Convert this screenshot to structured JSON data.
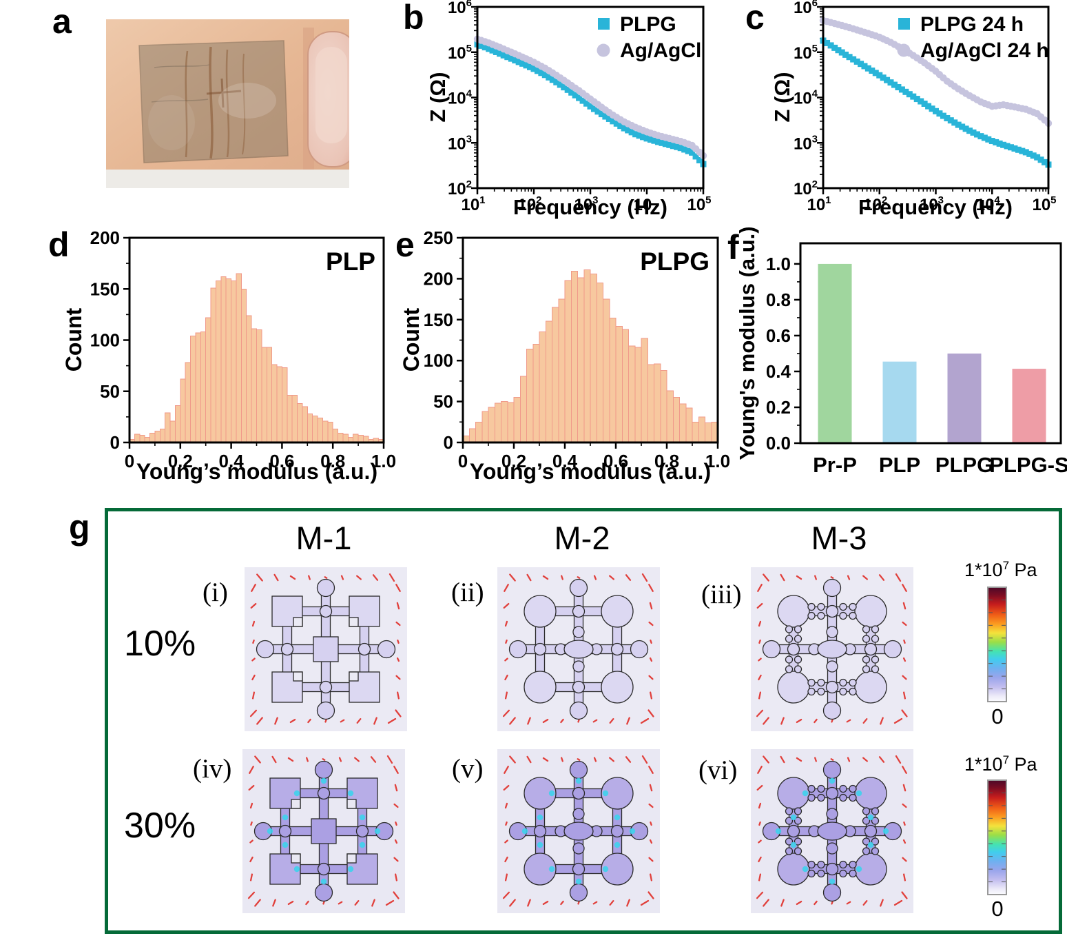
{
  "panels": {
    "a": {
      "label": "a"
    },
    "b": {
      "label": "b"
    },
    "c": {
      "label": "c"
    },
    "d": {
      "label": "d"
    },
    "e": {
      "label": "e"
    },
    "f": {
      "label": "f"
    },
    "g": {
      "label": "g"
    }
  },
  "chart_data": [
    {
      "id": "b",
      "type": "scatter",
      "xscale": "log",
      "yscale": "log",
      "xlabel": "Frequency (Hz)",
      "ylabel": "Z (Ω)",
      "xlim": [
        10,
        100000
      ],
      "ylim": [
        100,
        1000000
      ],
      "x_ticks": [
        {
          "b": "10",
          "e": "1"
        },
        {
          "b": "10",
          "e": "2"
        },
        {
          "b": "10",
          "e": "3"
        },
        {
          "b": "10",
          "e": ""
        },
        {
          "b": "10",
          "e": "5"
        }
      ],
      "y_ticks": [
        {
          "b": "10",
          "e": "2"
        },
        {
          "b": "10",
          "e": "3"
        },
        {
          "b": "10",
          "e": "4"
        },
        {
          "b": "10",
          "e": "5"
        },
        {
          "b": "10",
          "e": "6"
        }
      ],
      "legend_position": "top-right",
      "series": [
        {
          "name": "PLPG",
          "marker": "square",
          "color": "#29b4d8",
          "x": [
            10,
            16,
            25,
            40,
            63,
            100,
            158,
            251,
            398,
            631,
            1000,
            1585,
            2512,
            3981,
            6310,
            10000,
            15849,
            25119,
            39811,
            63096,
            100000
          ],
          "y": [
            150000,
            119000,
            93000,
            72000,
            56000,
            43000,
            31500,
            21800,
            14800,
            9800,
            6400,
            4300,
            3000,
            2100,
            1550,
            1250,
            1050,
            900,
            770,
            610,
            340
          ]
        },
        {
          "name": "Ag/AgCl",
          "marker": "circle",
          "color": "#c6c4de",
          "x": [
            10,
            16,
            25,
            40,
            63,
            100,
            158,
            251,
            398,
            631,
            1000,
            1585,
            2512,
            3981,
            6310,
            10000,
            15849,
            25119,
            39811,
            63096,
            100000
          ],
          "y": [
            195000,
            160000,
            128000,
            100000,
            78000,
            60000,
            44500,
            31000,
            21000,
            14200,
            9300,
            6100,
            4100,
            2900,
            2200,
            1750,
            1450,
            1250,
            1080,
            880,
            520
          ]
        }
      ]
    },
    {
      "id": "c",
      "type": "scatter",
      "xscale": "log",
      "yscale": "log",
      "xlabel": "Frequency (Hz)",
      "ylabel": "Z (Ω)",
      "xlim": [
        10,
        100000
      ],
      "ylim": [
        100,
        1000000
      ],
      "x_ticks": [
        {
          "b": "10",
          "e": "1"
        },
        {
          "b": "10",
          "e": "2"
        },
        {
          "b": "10",
          "e": "3"
        },
        {
          "b": "10",
          "e": "4"
        },
        {
          "b": "10",
          "e": "5"
        }
      ],
      "y_ticks": [
        {
          "b": "10",
          "e": "2"
        },
        {
          "b": "10",
          "e": "3"
        },
        {
          "b": "10",
          "e": "4"
        },
        {
          "b": "10",
          "e": "5"
        },
        {
          "b": "10",
          "e": "6"
        }
      ],
      "legend_position": "top-right",
      "series": [
        {
          "name": "PLPG 24 h",
          "marker": "square",
          "color": "#29b4d8",
          "x": [
            10,
            16,
            25,
            40,
            63,
            100,
            158,
            251,
            398,
            631,
            1000,
            1585,
            2512,
            3981,
            6310,
            10000,
            15849,
            25119,
            39811,
            63096,
            100000
          ],
          "y": [
            180000,
            125000,
            88000,
            62000,
            44000,
            31000,
            21500,
            15000,
            10500,
            7300,
            5000,
            3500,
            2500,
            1850,
            1400,
            1100,
            900,
            750,
            620,
            480,
            330
          ]
        },
        {
          "name": "Ag/AgCl 24 h",
          "marker": "circle",
          "color": "#c6c4de",
          "x": [
            10,
            16,
            25,
            40,
            63,
            100,
            158,
            251,
            398,
            631,
            1000,
            1585,
            2512,
            3981,
            6310,
            10000,
            15849,
            25119,
            39811,
            63096,
            100000
          ],
          "y": [
            500000,
            430000,
            370000,
            310000,
            260000,
            215000,
            165000,
            120000,
            85000,
            58000,
            38000,
            23000,
            15500,
            11000,
            8000,
            6400,
            6900,
            6200,
            5500,
            4400,
            2700
          ]
        }
      ]
    },
    {
      "id": "d",
      "type": "histogram",
      "annotation": "PLP",
      "xlabel": "Young’s modulus (a.u.)",
      "ylabel": "Count",
      "xlim": [
        0,
        1
      ],
      "ylim": [
        0,
        200
      ],
      "x_ticks": [
        "0",
        "0.2",
        "0.4",
        "0.6",
        "0.8",
        "1.0"
      ],
      "y_ticks": [
        "0",
        "50",
        "100",
        "150",
        "200"
      ],
      "bin_width": 0.02,
      "bar_fill": "#f7c89f",
      "bar_edge": "#f0998a",
      "values": [
        3,
        8,
        7,
        5,
        9,
        11,
        13,
        29,
        21,
        36,
        62,
        78,
        104,
        107,
        108,
        122,
        151,
        158,
        162,
        160,
        158,
        165,
        150,
        124,
        111,
        110,
        93,
        93,
        76,
        74,
        73,
        46,
        46,
        38,
        35,
        28,
        26,
        24,
        21,
        20,
        13,
        9,
        8,
        5,
        8,
        7,
        6,
        3,
        4,
        3
      ]
    },
    {
      "id": "e",
      "type": "histogram",
      "annotation": "PLPG",
      "xlabel": "Young’s modulus (a.u.)",
      "ylabel": "Count",
      "xlim": [
        0,
        1
      ],
      "ylim": [
        0,
        250
      ],
      "x_ticks": [
        "0",
        "0.2",
        "0.4",
        "0.6",
        "0.8",
        "1.0"
      ],
      "y_ticks": [
        "0",
        "50",
        "100",
        "150",
        "200",
        "250"
      ],
      "bin_width": 0.025,
      "bar_fill": "#f7c89f",
      "bar_edge": "#f0998a",
      "values": [
        8,
        17,
        25,
        38,
        43,
        48,
        50,
        49,
        55,
        81,
        114,
        120,
        135,
        148,
        165,
        175,
        198,
        209,
        201,
        211,
        206,
        195,
        175,
        152,
        142,
        138,
        118,
        116,
        127,
        95,
        96,
        88,
        63,
        55,
        47,
        42,
        25,
        31,
        24,
        25
      ]
    },
    {
      "id": "f",
      "type": "bar",
      "ylabel": "Young's modulus (a.u.)",
      "ylim": [
        0,
        1.115
      ],
      "y_ticks": [
        "0.0",
        "0.2",
        "0.4",
        "0.6",
        "0.8",
        "1.0"
      ],
      "categories": [
        "Pr-P",
        "PLP",
        "PLPG",
        "PLPG-S"
      ],
      "values": [
        1.0,
        0.455,
        0.5,
        0.415
      ],
      "colors": [
        "#a0d69e",
        "#a6d9ef",
        "#b2a4cf",
        "#ee9da6"
      ]
    }
  ],
  "panel_g": {
    "border_color": "#056a38",
    "columns": [
      "M-1",
      "M-2",
      "M-3"
    ],
    "rows": [
      "10%",
      "30%"
    ],
    "cells": [
      {
        "label": "(i)",
        "column": "M-1",
        "row": "10%"
      },
      {
        "label": "(ii)",
        "column": "M-2",
        "row": "10%"
      },
      {
        "label": "(iii)",
        "column": "M-3",
        "row": "10%"
      },
      {
        "label": "(iv)",
        "column": "M-1",
        "row": "30%"
      },
      {
        "label": "(v)",
        "column": "M-2",
        "row": "30%"
      },
      {
        "label": "(vi)",
        "column": "M-3",
        "row": "30%"
      }
    ],
    "colorbar": {
      "max_prefix": "1*10",
      "max_exp": "7",
      "max_suffix": " Pa",
      "min": "0"
    }
  }
}
